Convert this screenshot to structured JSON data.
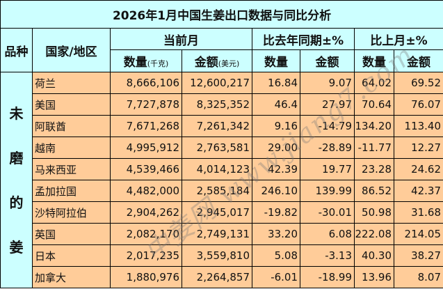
{
  "title": "2026年1月中国生姜出口数据与同比分析",
  "headers": {
    "variety": "品种",
    "country": "国家/地区",
    "current_month": "当前月",
    "yoy": "比去年同期±%",
    "mom": "比上月±%",
    "qty": "数量",
    "qty_unit": "(千克)",
    "amount": "金额",
    "amount_unit": "(美元)"
  },
  "variety_label": [
    "未",
    "磨",
    "的",
    "姜"
  ],
  "rows": [
    {
      "country": "荷兰",
      "qty": "8,666,106",
      "amount": "12,600,217",
      "yoy_qty": "16.84",
      "yoy_amount": "9.07",
      "mom_qty": "64.02",
      "mom_amount": "69.52"
    },
    {
      "country": "美国",
      "qty": "7,727,878",
      "amount": "8,325,352",
      "yoy_qty": "46.4",
      "yoy_amount": "27.97",
      "mom_qty": "70.64",
      "mom_amount": "76.07"
    },
    {
      "country": "阿联酋",
      "qty": "7,671,268",
      "amount": "7,261,342",
      "yoy_qty": "9.16",
      "yoy_amount": "-14.79",
      "mom_qty": "134.20",
      "mom_amount": "113.40"
    },
    {
      "country": "越南",
      "qty": "4,995,912",
      "amount": "2,763,581",
      "yoy_qty": "29.00",
      "yoy_amount": "-28.89",
      "mom_qty": "-11.77",
      "mom_amount": "12.27"
    },
    {
      "country": "马来西亚",
      "qty": "4,539,466",
      "amount": "4,014,123",
      "yoy_qty": "42.39",
      "yoy_amount": "19.77",
      "mom_qty": "23.28",
      "mom_amount": "24.62"
    },
    {
      "country": "孟加拉国",
      "qty": "4,482,000",
      "amount": "2,585,184",
      "yoy_qty": "246.10",
      "yoy_amount": "139.99",
      "mom_qty": "86.52",
      "mom_amount": "42.37"
    },
    {
      "country": "沙特阿拉伯",
      "qty": "2,904,262",
      "amount": "2,945,017",
      "yoy_qty": "-19.82",
      "yoy_amount": "-30.01",
      "mom_qty": "50.98",
      "mom_amount": "31.68"
    },
    {
      "country": "英国",
      "qty": "2,082,170",
      "amount": "2,749,131",
      "yoy_qty": "33.20",
      "yoy_amount": "6.08",
      "mom_qty": "222.08",
      "mom_amount": "214.05"
    },
    {
      "country": "日本",
      "qty": "2,017,235",
      "amount": "3,559,810",
      "yoy_qty": "5.08",
      "yoy_amount": "-3.13",
      "mom_qty": "40.30",
      "mom_amount": "38.27"
    },
    {
      "country": "加拿大",
      "qty": "1,880,976",
      "amount": "2,264,857",
      "yoy_qty": "-6.01",
      "yoy_amount": "-18.99",
      "mom_qty": "13.96",
      "mom_amount": "8.07"
    }
  ],
  "watermark": "中姜网 www.jiang7.com",
  "colors": {
    "header_bg": "#ccffff",
    "data_bg": "#ffcc99",
    "border": "#000000"
  }
}
